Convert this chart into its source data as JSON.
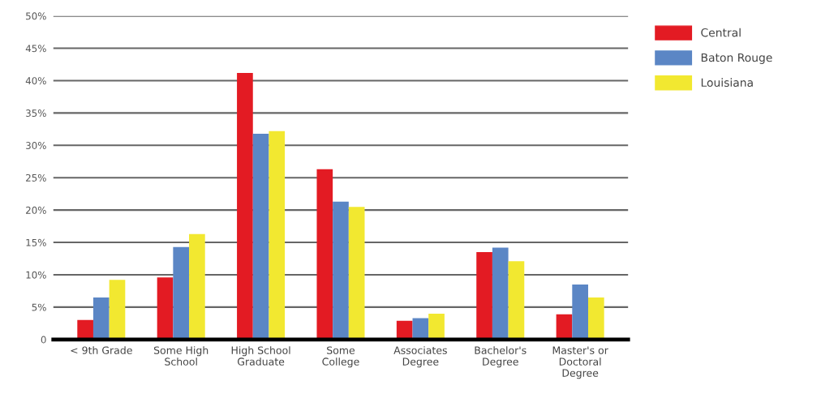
{
  "chart_data": {
    "type": "bar",
    "categories": [
      "< 9th Grade",
      "Some High\nSchool",
      "High School\nGraduate",
      "Some\nCollege",
      "Associates\nDegree",
      "Bachelor's\nDegree",
      "Master's or\nDoctoral\nDegree"
    ],
    "series": [
      {
        "name": "Central",
        "color": "#e31b23",
        "values": [
          3.0,
          9.6,
          41.2,
          26.3,
          2.9,
          13.5,
          3.9
        ]
      },
      {
        "name": "Baton Rouge",
        "color": "#5b86c5",
        "values": [
          6.5,
          14.3,
          31.8,
          21.3,
          3.3,
          14.2,
          8.5
        ]
      },
      {
        "name": "Louisiana",
        "color": "#f2e830",
        "values": [
          9.2,
          16.3,
          32.2,
          20.5,
          4.0,
          12.1,
          6.5
        ]
      }
    ],
    "ylim": [
      0,
      50
    ],
    "yticks": [
      {
        "value": 0,
        "label": "0"
      },
      {
        "value": 5,
        "label": "5%"
      },
      {
        "value": 10,
        "label": "10%"
      },
      {
        "value": 15,
        "label": "15%"
      },
      {
        "value": 20,
        "label": "20%"
      },
      {
        "value": 25,
        "label": "25%"
      },
      {
        "value": 30,
        "label": "30%"
      },
      {
        "value": 35,
        "label": "35%"
      },
      {
        "value": 40,
        "label": "40%"
      },
      {
        "value": 45,
        "label": "45%"
      },
      {
        "value": 50,
        "label": "50%"
      }
    ],
    "grid": "y",
    "legend": "top right"
  }
}
